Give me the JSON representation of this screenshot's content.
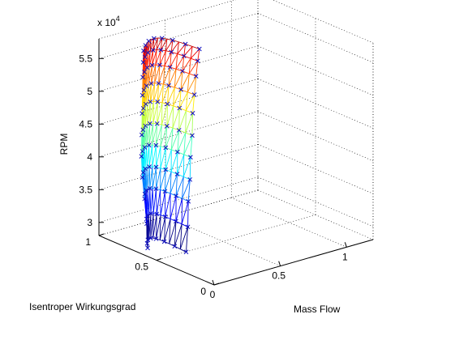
{
  "chart_data": {
    "type": "surface3d",
    "xlabel": "Mass Flow",
    "ylabel": "Isentroper Wirkungsgrad",
    "zlabel": "RPM",
    "exponent": {
      "base": "x 10",
      "power": "4"
    },
    "x_ticks": [
      "0",
      "0.5",
      "1"
    ],
    "y_ticks": [
      "0",
      "0.5",
      "1"
    ],
    "z_ticks": [
      "3",
      "3.5",
      "4",
      "4.5",
      "5",
      "5.5"
    ],
    "x_tick_values": [
      0,
      0.5,
      1
    ],
    "y_tick_values": [
      0,
      0.5,
      1
    ],
    "z_tick_values": [
      30000,
      35000,
      40000,
      45000,
      50000,
      55000
    ],
    "xlim": [
      0,
      1.2
    ],
    "ylim": [
      0,
      1
    ],
    "zlim": [
      28000,
      58000
    ],
    "grid": true,
    "colormap": "jet",
    "marker_color": "#1010c0",
    "speed_lines_rpm": [
      29000,
      32500,
      36000,
      39000,
      42000,
      45000,
      48000,
      50500,
      53000,
      55000,
      56500
    ],
    "speed_lines_massflow": [
      [
        0.02,
        0.18
      ],
      [
        0.03,
        0.21
      ],
      [
        0.04,
        0.24
      ],
      [
        0.05,
        0.27
      ],
      [
        0.06,
        0.3
      ],
      [
        0.08,
        0.33
      ],
      [
        0.1,
        0.36
      ],
      [
        0.12,
        0.39
      ],
      [
        0.14,
        0.42
      ],
      [
        0.16,
        0.45
      ],
      [
        0.18,
        0.48
      ]
    ],
    "speed_lines_efficiency": [
      [
        0.6,
        0.45
      ],
      [
        0.62,
        0.47
      ],
      [
        0.65,
        0.5
      ],
      [
        0.68,
        0.52
      ],
      [
        0.7,
        0.55
      ],
      [
        0.72,
        0.57
      ],
      [
        0.74,
        0.6
      ],
      [
        0.76,
        0.62
      ],
      [
        0.78,
        0.64
      ],
      [
        0.8,
        0.66
      ],
      [
        0.82,
        0.68
      ]
    ]
  }
}
